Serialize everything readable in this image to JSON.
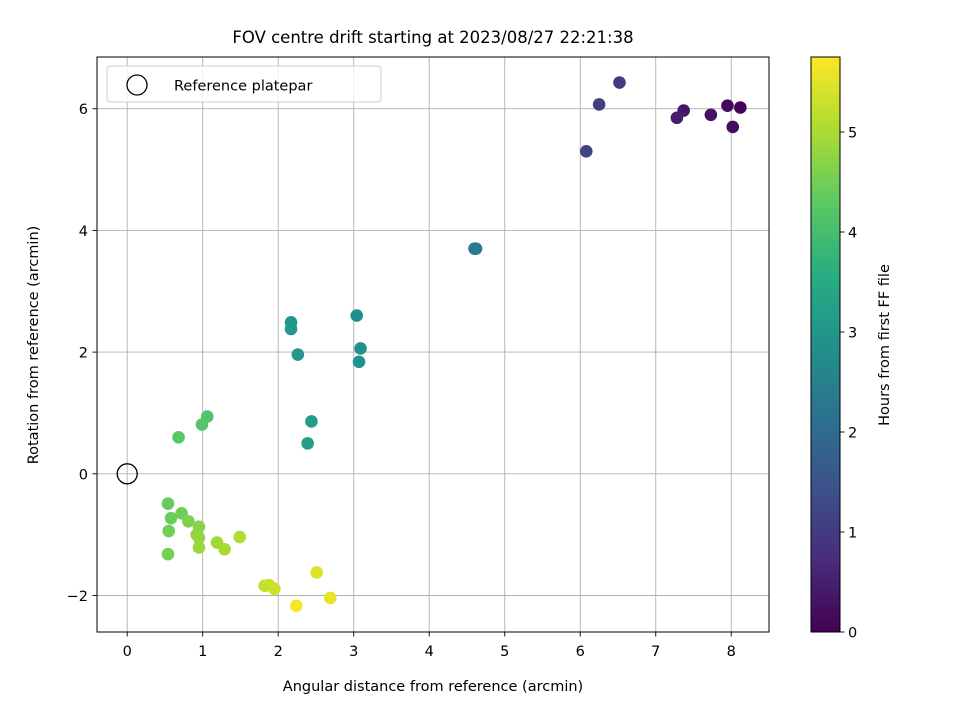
{
  "chart_data": {
    "type": "scatter",
    "title": "FOV centre drift starting at 2023/08/27 22:21:38",
    "xlabel": "Angular distance from reference (arcmin)",
    "ylabel": "Rotation from reference (arcmin)",
    "xlim": [
      -0.4,
      8.5
    ],
    "ylim": [
      -2.6,
      6.85
    ],
    "xticks": [
      0,
      1,
      2,
      3,
      4,
      5,
      6,
      7,
      8
    ],
    "yticks": [
      -2,
      0,
      2,
      4,
      6
    ],
    "ytick_labels": [
      "−2",
      "0",
      "2",
      "4",
      "6"
    ],
    "grid": true,
    "colormap": "viridis",
    "colorbar": {
      "label": "Hours from first FF file",
      "range": [
        0,
        5.75
      ],
      "ticks": [
        0,
        1,
        2,
        3,
        4,
        5
      ]
    },
    "legend": {
      "position": "top-left",
      "entries": [
        "Reference platepar"
      ]
    },
    "reference_point": {
      "x": 0,
      "y": 0
    },
    "points": [
      {
        "x": 8.12,
        "y": 6.02,
        "c": 0.05
      },
      {
        "x": 7.95,
        "y": 6.05,
        "c": 0.12
      },
      {
        "x": 8.02,
        "y": 5.7,
        "c": 0.2
      },
      {
        "x": 7.73,
        "y": 5.9,
        "c": 0.28
      },
      {
        "x": 7.37,
        "y": 5.97,
        "c": 0.36
      },
      {
        "x": 7.28,
        "y": 5.85,
        "c": 0.44
      },
      {
        "x": 6.52,
        "y": 6.43,
        "c": 1.0
      },
      {
        "x": 6.25,
        "y": 6.07,
        "c": 1.08
      },
      {
        "x": 6.08,
        "y": 5.3,
        "c": 1.16
      },
      {
        "x": 4.6,
        "y": 3.7,
        "c": 2.3
      },
      {
        "x": 4.62,
        "y": 3.7,
        "c": 2.35
      },
      {
        "x": 3.04,
        "y": 2.6,
        "c": 2.85
      },
      {
        "x": 3.09,
        "y": 2.06,
        "c": 2.88
      },
      {
        "x": 3.07,
        "y": 1.84,
        "c": 2.9
      },
      {
        "x": 2.17,
        "y": 2.49,
        "c": 3.0
      },
      {
        "x": 2.17,
        "y": 2.38,
        "c": 3.03
      },
      {
        "x": 2.26,
        "y": 1.96,
        "c": 3.06
      },
      {
        "x": 2.44,
        "y": 0.86,
        "c": 3.15
      },
      {
        "x": 2.39,
        "y": 0.5,
        "c": 3.2
      },
      {
        "x": 1.06,
        "y": 0.94,
        "c": 4.15
      },
      {
        "x": 0.99,
        "y": 0.81,
        "c": 4.2
      },
      {
        "x": 0.68,
        "y": 0.6,
        "c": 4.25
      },
      {
        "x": 0.54,
        "y": -0.49,
        "c": 4.38
      },
      {
        "x": 0.58,
        "y": -0.73,
        "c": 4.42
      },
      {
        "x": 0.72,
        "y": -0.65,
        "c": 4.46
      },
      {
        "x": 0.55,
        "y": -0.94,
        "c": 4.5
      },
      {
        "x": 0.54,
        "y": -1.32,
        "c": 4.54
      },
      {
        "x": 0.81,
        "y": -0.78,
        "c": 4.6
      },
      {
        "x": 0.95,
        "y": -0.87,
        "c": 4.68
      },
      {
        "x": 0.92,
        "y": -1.0,
        "c": 4.74
      },
      {
        "x": 0.95,
        "y": -1.05,
        "c": 4.8
      },
      {
        "x": 0.95,
        "y": -1.21,
        "c": 4.86
      },
      {
        "x": 1.19,
        "y": -1.13,
        "c": 4.92
      },
      {
        "x": 1.29,
        "y": -1.24,
        "c": 4.98
      },
      {
        "x": 1.49,
        "y": -1.04,
        "c": 5.04
      },
      {
        "x": 1.82,
        "y": -1.84,
        "c": 5.2
      },
      {
        "x": 1.88,
        "y": -1.83,
        "c": 5.26
      },
      {
        "x": 1.95,
        "y": -1.89,
        "c": 5.32
      },
      {
        "x": 2.51,
        "y": -1.62,
        "c": 5.45
      },
      {
        "x": 2.69,
        "y": -2.04,
        "c": 5.55
      },
      {
        "x": 2.24,
        "y": -2.17,
        "c": 5.7
      }
    ]
  }
}
